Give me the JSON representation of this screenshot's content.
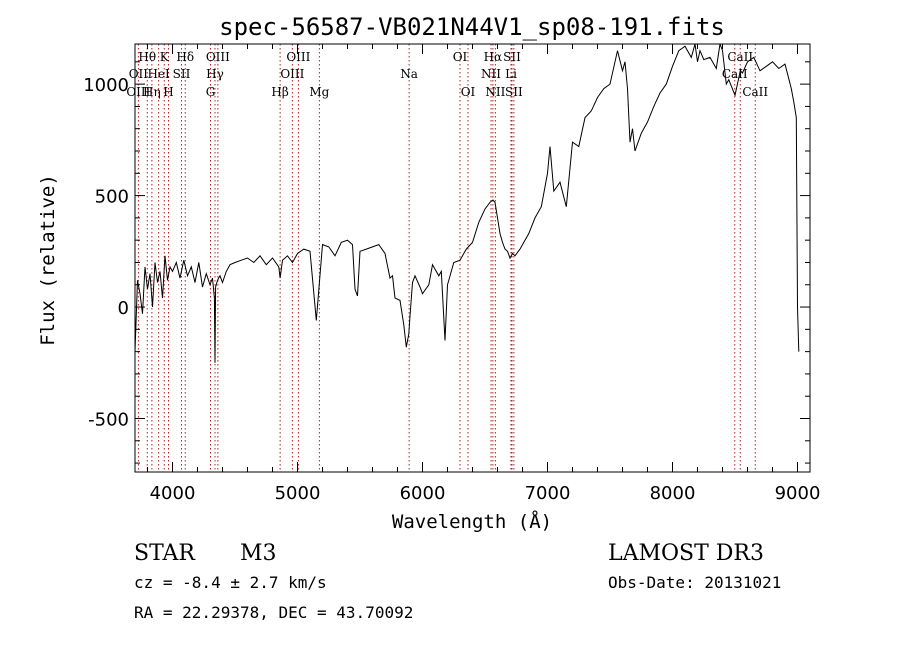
{
  "chart_data": {
    "type": "line",
    "title": "spec-56587-VB021N44V1_sp08-191.fits",
    "xlabel": "Wavelength (Å)",
    "ylabel": "Flux (relative)",
    "xlim": [
      3700,
      9100
    ],
    "ylim": [
      -740,
      1180
    ],
    "xticks": [
      4000,
      5000,
      6000,
      7000,
      8000,
      9000
    ],
    "yticks": [
      -500,
      0,
      500,
      1000
    ],
    "series": [
      {
        "name": "spectrum",
        "color": "#000000",
        "x": [
          3700,
          3720,
          3740,
          3760,
          3780,
          3800,
          3820,
          3840,
          3860,
          3880,
          3900,
          3920,
          3940,
          3960,
          3980,
          4000,
          4030,
          4060,
          4090,
          4120,
          4150,
          4180,
          4210,
          4240,
          4270,
          4300,
          4320,
          4335,
          4340,
          4345,
          4360,
          4380,
          4400,
          4430,
          4460,
          4500,
          4550,
          4600,
          4650,
          4700,
          4750,
          4800,
          4850,
          4861,
          4880,
          4920,
          4960,
          5000,
          5050,
          5100,
          5150,
          5200,
          5250,
          5300,
          5350,
          5400,
          5440,
          5460,
          5480,
          5500,
          5550,
          5600,
          5650,
          5700,
          5740,
          5760,
          5780,
          5820,
          5850,
          5870,
          5890,
          5900,
          5920,
          5940,
          5980,
          6000,
          6050,
          6080,
          6100,
          6130,
          6150,
          6180,
          6200,
          6250,
          6300,
          6350,
          6400,
          6450,
          6500,
          6540,
          6563,
          6580,
          6600,
          6620,
          6640,
          6660,
          6680,
          6700,
          6720,
          6740,
          6780,
          6800,
          6850,
          6900,
          6950,
          7000,
          7020,
          7050,
          7100,
          7150,
          7200,
          7250,
          7300,
          7350,
          7400,
          7450,
          7500,
          7540,
          7560,
          7600,
          7620,
          7640,
          7660,
          7680,
          7700,
          7750,
          7800,
          7850,
          7900,
          7950,
          8000,
          8050,
          8100,
          8150,
          8180,
          8200,
          8220,
          8250,
          8300,
          8350,
          8380,
          8400,
          8430,
          8450,
          8500,
          8542,
          8560,
          8600,
          8650,
          8700,
          8750,
          8800,
          8850,
          8900,
          8950,
          8970,
          8990,
          9000,
          9010
        ],
        "y": [
          -200,
          120,
          60,
          -30,
          180,
          80,
          150,
          0,
          200,
          110,
          160,
          40,
          230,
          120,
          180,
          160,
          200,
          130,
          210,
          140,
          180,
          110,
          200,
          90,
          150,
          100,
          130,
          40,
          -250,
          90,
          120,
          140,
          110,
          160,
          190,
          200,
          210,
          220,
          200,
          230,
          190,
          220,
          180,
          130,
          210,
          230,
          200,
          240,
          260,
          250,
          -60,
          280,
          270,
          230,
          290,
          300,
          280,
          80,
          50,
          250,
          260,
          270,
          280,
          240,
          130,
          140,
          40,
          30,
          -80,
          -180,
          -120,
          -40,
          110,
          140,
          90,
          60,
          100,
          190,
          170,
          140,
          160,
          -150,
          100,
          200,
          210,
          260,
          290,
          380,
          440,
          470,
          480,
          470,
          400,
          330,
          290,
          260,
          250,
          220,
          240,
          230,
          260,
          280,
          330,
          400,
          450,
          600,
          720,
          520,
          560,
          450,
          740,
          720,
          850,
          880,
          940,
          980,
          1000,
          1100,
          1150,
          1060,
          1100,
          980,
          740,
          800,
          700,
          780,
          830,
          900,
          960,
          1000,
          1080,
          1150,
          1170,
          1120,
          1180,
          1100,
          1150,
          1110,
          1120,
          1070,
          1180,
          1150,
          1000,
          1020,
          950,
          1060,
          1050,
          1100,
          1120,
          1060,
          1080,
          1100,
          1070,
          1090,
          980,
          920,
          850,
          0,
          -200
        ]
      }
    ],
    "emission_lines": [
      {
        "label": "Hθ",
        "wavelength": 3798,
        "row": 1
      },
      {
        "label": "K",
        "wavelength": 3934,
        "row": 1
      },
      {
        "label": "Hδ",
        "wavelength": 4102,
        "row": 1
      },
      {
        "label": "OIII",
        "wavelength": 4363,
        "row": 1
      },
      {
        "label": "OIII",
        "wavelength": 5007,
        "row": 1
      },
      {
        "label": "OI",
        "wavelength": 6300,
        "row": 1
      },
      {
        "label": "Hα",
        "wavelength": 6563,
        "row": 1
      },
      {
        "label": "SII",
        "wavelength": 6716,
        "row": 1
      },
      {
        "label": "CaII",
        "wavelength": 8542,
        "row": 1
      },
      {
        "label": "OII",
        "wavelength": 3727,
        "row": 2
      },
      {
        "label": "HeI",
        "wavelength": 3889,
        "row": 2
      },
      {
        "label": "SII",
        "wavelength": 4072,
        "row": 2
      },
      {
        "label": "Hγ",
        "wavelength": 4340,
        "row": 2
      },
      {
        "label": "OIII",
        "wavelength": 4959,
        "row": 2
      },
      {
        "label": "Na",
        "wavelength": 5893,
        "row": 2
      },
      {
        "label": "NII",
        "wavelength": 6548,
        "row": 2
      },
      {
        "label": "Li",
        "wavelength": 6708,
        "row": 2
      },
      {
        "label": "CaII",
        "wavelength": 8498,
        "row": 2
      },
      {
        "label": "OIII",
        "wavelength": 3727,
        "row": 3
      },
      {
        "label": "Hη",
        "wavelength": 3835,
        "row": 3
      },
      {
        "label": "H",
        "wavelength": 3968,
        "row": 3
      },
      {
        "label": "G",
        "wavelength": 4304,
        "row": 3
      },
      {
        "label": "Hβ",
        "wavelength": 4861,
        "row": 3
      },
      {
        "label": "Mg",
        "wavelength": 5175,
        "row": 3
      },
      {
        "label": "OI",
        "wavelength": 6364,
        "row": 3
      },
      {
        "label": "NII",
        "wavelength": 6583,
        "row": 3
      },
      {
        "label": "SII",
        "wavelength": 6731,
        "row": 3
      },
      {
        "label": "CaII",
        "wavelength": 8662,
        "row": 3
      }
    ]
  },
  "info": {
    "object_class": "STAR",
    "subclass": "M3",
    "survey": "LAMOST DR3",
    "cz": "cz = -8.4 ± 2.7 km/s",
    "obs_date": "Obs-Date: 20131021",
    "coords": "RA =  22.29378, DEC =  43.70092"
  },
  "colors": {
    "line_marker": "#b22222",
    "axis": "#000000",
    "spectrum": "#000000"
  }
}
